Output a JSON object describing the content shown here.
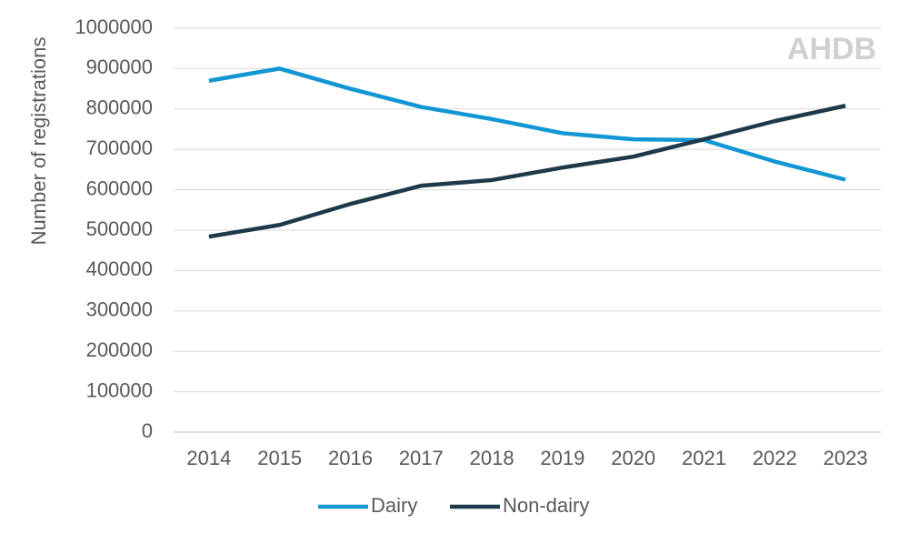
{
  "chart_data": {
    "type": "line",
    "ylabel": "Number of registrations",
    "watermark": "AHDB",
    "categories": [
      "2014",
      "2015",
      "2016",
      "2017",
      "2018",
      "2019",
      "2020",
      "2021",
      "2022",
      "2023"
    ],
    "series": [
      {
        "name": "Dairy",
        "color": "#1296d4",
        "values": [
          870000,
          900000,
          850000,
          805000,
          775000,
          740000,
          725000,
          723000,
          670000,
          625000
        ]
      },
      {
        "name": "Non-dairy",
        "color": "#1e3a4a",
        "values": [
          484000,
          513000,
          565000,
          610000,
          624000,
          655000,
          682000,
          725000,
          770000,
          808000
        ]
      }
    ],
    "ylim": [
      0,
      1000000
    ],
    "yticks": [
      0,
      100000,
      200000,
      300000,
      400000,
      500000,
      600000,
      700000,
      800000,
      900000,
      1000000
    ],
    "grid": true,
    "legend": "bottom"
  }
}
